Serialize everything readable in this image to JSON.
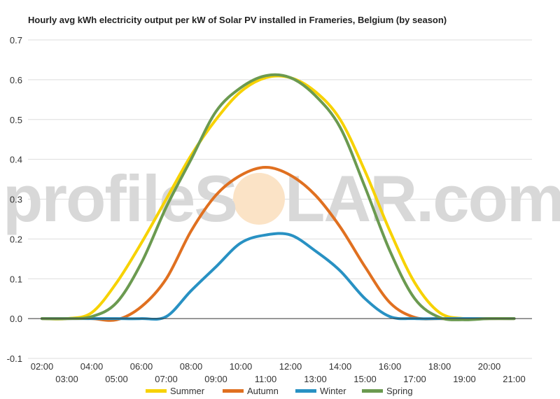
{
  "chart_data": {
    "type": "line",
    "title": "Hourly avg kWh electricity output per kW of Solar PV installed in Frameries, Belgium (by season)",
    "xlabel": "",
    "ylabel": "",
    "ylim": [
      -0.1,
      0.7
    ],
    "yticks": [
      "0.7",
      "0.6",
      "0.5",
      "0.4",
      "0.3",
      "0.2",
      "0.1",
      "0.0",
      "-0.1"
    ],
    "xticks_upper": [
      "02:00",
      "04:00",
      "06:00",
      "08:00",
      "10:00",
      "12:00",
      "14:00",
      "16:00",
      "18:00",
      "20:00"
    ],
    "xticks_lower": [
      "03:00",
      "05:00",
      "07:00",
      "09:00",
      "11:00",
      "13:00",
      "15:00",
      "17:00",
      "19:00",
      "21:00"
    ],
    "grid": true,
    "legend": "bottom",
    "x": [
      "02:00",
      "03:00",
      "04:00",
      "05:00",
      "06:00",
      "07:00",
      "08:00",
      "09:00",
      "10:00",
      "11:00",
      "12:00",
      "13:00",
      "14:00",
      "15:00",
      "16:00",
      "17:00",
      "18:00",
      "19:00",
      "20:00",
      "21:00"
    ],
    "series": [
      {
        "name": "Summer",
        "color": "#f7d200",
        "values": [
          0,
          0,
          0.015,
          0.09,
          0.19,
          0.3,
          0.41,
          0.5,
          0.57,
          0.605,
          0.605,
          0.57,
          0.5,
          0.37,
          0.22,
          0.09,
          0.015,
          0,
          0,
          0
        ]
      },
      {
        "name": "Autumn",
        "color": "#e07020",
        "values": [
          0,
          0,
          0,
          -0.003,
          0.03,
          0.1,
          0.22,
          0.31,
          0.36,
          0.38,
          0.36,
          0.31,
          0.23,
          0.13,
          0.04,
          0.003,
          0,
          0,
          0,
          0
        ]
      },
      {
        "name": "Winter",
        "color": "#2891c3",
        "values": [
          0,
          0,
          0,
          0,
          0,
          0.005,
          0.07,
          0.13,
          0.19,
          0.21,
          0.21,
          0.17,
          0.12,
          0.05,
          0.005,
          0,
          0,
          0,
          0,
          0
        ]
      },
      {
        "name": "Spring",
        "color": "#6b9a50",
        "values": [
          0,
          0,
          0.005,
          0.04,
          0.14,
          0.28,
          0.4,
          0.52,
          0.58,
          0.61,
          0.605,
          0.56,
          0.48,
          0.33,
          0.17,
          0.05,
          0.003,
          -0.003,
          0,
          0
        ]
      }
    ]
  },
  "watermark": {
    "text_left": "profileS",
    "text_right": "LAR.com",
    "sun_color": "#fbe3c6"
  }
}
